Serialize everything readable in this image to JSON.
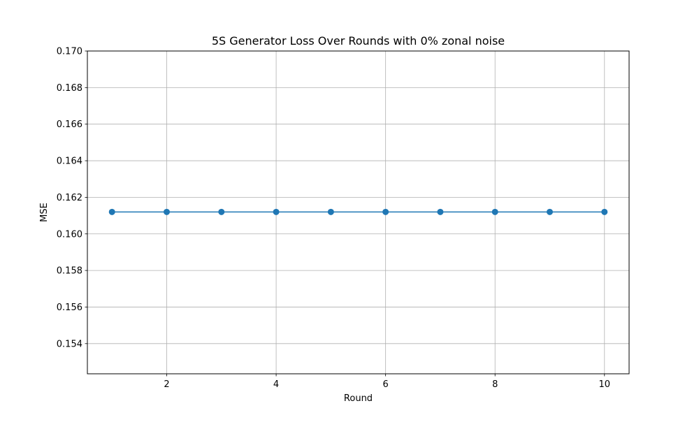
{
  "chart_data": {
    "type": "line",
    "title": "5S Generator Loss Over Rounds with 0% zonal noise",
    "xlabel": "Round",
    "ylabel": "MSE",
    "xlim": [
      0.55,
      10.45
    ],
    "ylim": [
      0.15235,
      0.17
    ],
    "xticks": [
      2,
      4,
      6,
      8,
      10
    ],
    "yticks": [
      0.154,
      0.156,
      0.158,
      0.16,
      0.162,
      0.164,
      0.166,
      0.168,
      0.17
    ],
    "ytick_labels": [
      "0.154",
      "0.156",
      "0.158",
      "0.160",
      "0.162",
      "0.164",
      "0.166",
      "0.168",
      "0.170"
    ],
    "grid": true,
    "marker": "circle",
    "series": [
      {
        "color": "#1f77b4",
        "x": [
          1,
          2,
          3,
          4,
          5,
          6,
          7,
          8,
          9,
          10
        ],
        "y": [
          0.1612,
          0.1612,
          0.1612,
          0.1612,
          0.1612,
          0.1612,
          0.1612,
          0.1612,
          0.1612,
          0.1612
        ]
      }
    ]
  }
}
